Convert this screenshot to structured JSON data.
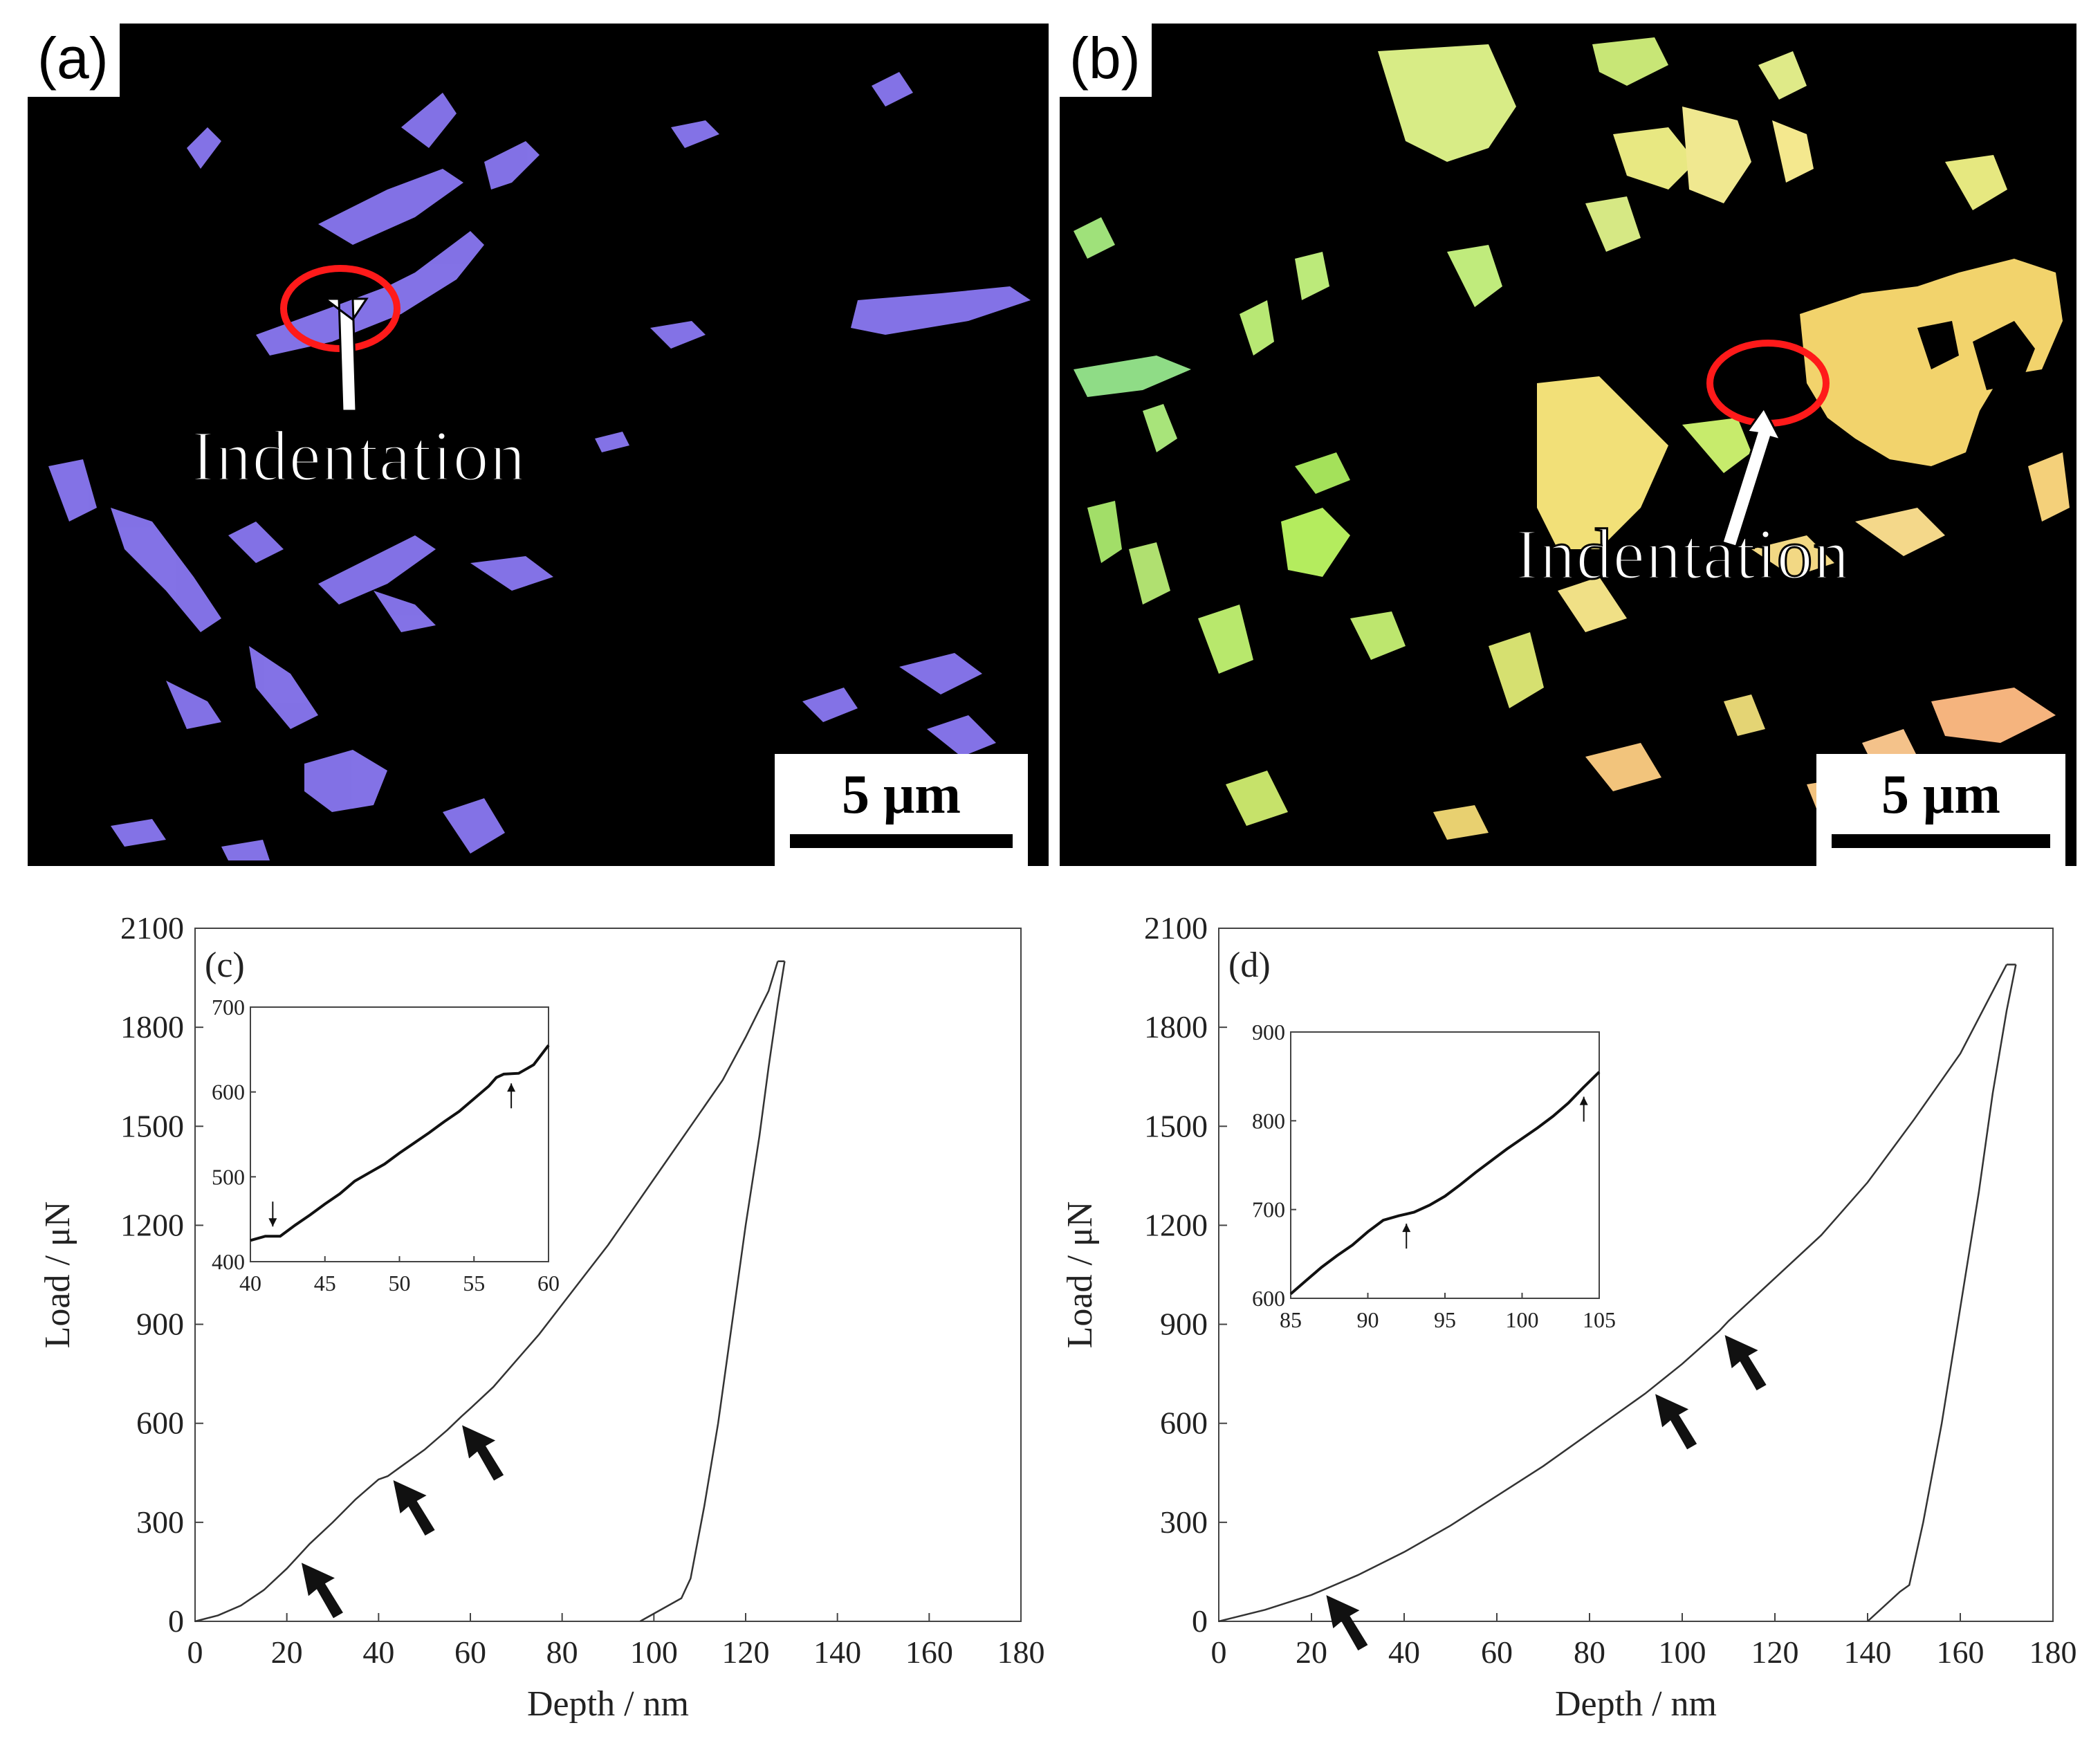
{
  "panel_a": {
    "label": "(a)",
    "scalebar": "5 μm",
    "annotation": "Indentation"
  },
  "panel_b": {
    "label": "(b)",
    "scalebar": "5 μm",
    "annotation": "Indentation"
  },
  "colors": {
    "phase_a": "#8a78f2",
    "phase_b_green": "#a8ee70",
    "phase_b_yellow": "#f2e27a",
    "phase_b_orange": "#f5b47e",
    "circle": "#ff1a1a"
  },
  "chart_data": [
    {
      "type": "line",
      "panel_label": "(c)",
      "xlabel": "Depth / nm",
      "ylabel": "Load / μN",
      "xlim": [
        0,
        180
      ],
      "ylim": [
        0,
        2100
      ],
      "xticks": [
        0,
        20,
        40,
        60,
        80,
        100,
        120,
        140,
        160,
        180
      ],
      "yticks": [
        0,
        300,
        600,
        900,
        1200,
        1500,
        1800,
        2100
      ],
      "loading": [
        [
          0,
          0
        ],
        [
          5,
          18
        ],
        [
          10,
          48
        ],
        [
          15,
          95
        ],
        [
          20,
          160
        ],
        [
          25,
          235
        ],
        [
          30,
          300
        ],
        [
          35,
          370
        ],
        [
          40,
          430
        ],
        [
          42,
          440
        ],
        [
          45,
          470
        ],
        [
          50,
          520
        ],
        [
          55,
          580
        ],
        [
          58,
          620
        ],
        [
          60,
          645
        ],
        [
          65,
          710
        ],
        [
          70,
          790
        ],
        [
          75,
          870
        ],
        [
          80,
          960
        ],
        [
          85,
          1050
        ],
        [
          90,
          1140
        ],
        [
          95,
          1240
        ],
        [
          100,
          1340
        ],
        [
          105,
          1440
        ],
        [
          110,
          1540
        ],
        [
          115,
          1640
        ],
        [
          120,
          1770
        ],
        [
          125,
          1910
        ],
        [
          127,
          2000
        ]
      ],
      "unloading": [
        [
          128.5,
          2000
        ],
        [
          127,
          1870
        ],
        [
          125,
          1680
        ],
        [
          123,
          1470
        ],
        [
          120,
          1200
        ],
        [
          117,
          900
        ],
        [
          114,
          600
        ],
        [
          111,
          350
        ],
        [
          108,
          130
        ],
        [
          106,
          70
        ],
        [
          97,
          0
        ]
      ],
      "arrows_at_depth": [
        22,
        42,
        57
      ],
      "inset": {
        "xlim": [
          40,
          60
        ],
        "ylim": [
          400,
          700
        ],
        "xticks": [
          40,
          45,
          50,
          55,
          60
        ],
        "yticks": [
          400,
          500,
          600,
          700
        ],
        "points": [
          [
            40,
            425
          ],
          [
            41,
            430
          ],
          [
            42,
            430
          ],
          [
            43,
            443
          ],
          [
            44,
            455
          ],
          [
            45,
            468
          ],
          [
            46,
            480
          ],
          [
            47,
            495
          ],
          [
            48,
            505
          ],
          [
            49,
            515
          ],
          [
            50,
            528
          ],
          [
            51,
            540
          ],
          [
            52,
            552
          ],
          [
            53,
            565
          ],
          [
            54,
            577
          ],
          [
            55,
            592
          ],
          [
            56,
            607
          ],
          [
            56.5,
            617
          ],
          [
            57,
            621
          ],
          [
            58,
            622
          ],
          [
            59,
            632
          ],
          [
            60,
            655
          ]
        ],
        "arrows_at_depth": [
          41.5,
          57.5
        ]
      }
    },
    {
      "type": "line",
      "panel_label": "(d)",
      "xlabel": "Depth / nm",
      "ylabel": "Load / μN",
      "xlim": [
        0,
        180
      ],
      "ylim": [
        0,
        2100
      ],
      "xticks": [
        0,
        20,
        40,
        60,
        80,
        100,
        120,
        140,
        160,
        180
      ],
      "yticks": [
        0,
        300,
        600,
        900,
        1200,
        1500,
        1800,
        2100
      ],
      "loading": [
        [
          0,
          0
        ],
        [
          10,
          35
        ],
        [
          20,
          80
        ],
        [
          30,
          140
        ],
        [
          40,
          210
        ],
        [
          50,
          290
        ],
        [
          60,
          380
        ],
        [
          70,
          470
        ],
        [
          80,
          570
        ],
        [
          90,
          670
        ],
        [
          92,
          690
        ],
        [
          100,
          780
        ],
        [
          108,
          880
        ],
        [
          110,
          910
        ],
        [
          120,
          1040
        ],
        [
          130,
          1170
        ],
        [
          140,
          1330
        ],
        [
          150,
          1520
        ],
        [
          160,
          1720
        ],
        [
          170,
          1990
        ]
      ],
      "unloading": [
        [
          172,
          1990
        ],
        [
          170,
          1850
        ],
        [
          167,
          1600
        ],
        [
          164,
          1300
        ],
        [
          160,
          950
        ],
        [
          156,
          600
        ],
        [
          152,
          300
        ],
        [
          149,
          110
        ],
        [
          147,
          90
        ],
        [
          140,
          0
        ]
      ],
      "arrows_at_depth": [
        22,
        93,
        108
      ],
      "inset": {
        "xlim": [
          85,
          105
        ],
        "ylim": [
          600,
          900
        ],
        "xticks": [
          85,
          90,
          95,
          100,
          105
        ],
        "yticks": [
          600,
          700,
          800,
          900
        ],
        "points": [
          [
            85,
            605
          ],
          [
            86,
            620
          ],
          [
            87,
            635
          ],
          [
            88,
            648
          ],
          [
            89,
            660
          ],
          [
            90,
            675
          ],
          [
            91,
            688
          ],
          [
            92,
            693
          ],
          [
            93,
            697
          ],
          [
            94,
            705
          ],
          [
            95,
            715
          ],
          [
            96,
            728
          ],
          [
            97,
            742
          ],
          [
            98,
            755
          ],
          [
            99,
            768
          ],
          [
            100,
            780
          ],
          [
            101,
            792
          ],
          [
            102,
            805
          ],
          [
            103,
            820
          ],
          [
            104,
            838
          ],
          [
            105,
            855
          ]
        ],
        "arrows_at_depth": [
          92.5,
          104
        ]
      }
    }
  ]
}
